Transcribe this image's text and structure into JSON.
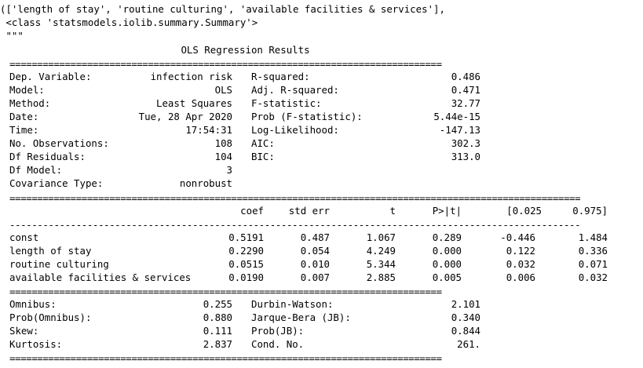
{
  "header": {
    "line1": "(['length of stay', 'routine culturing', 'available facilities & services'],",
    "line2": " <class 'statsmodels.iolib.summary.Summary'>",
    "line3": " \"\"\""
  },
  "summary": {
    "title": "OLS Regression Results",
    "sep_eq": "==============================================================================",
    "sep_eq_wide": "=======================================================================================================",
    "sep_dash_wide": "-------------------------------------------------------------------------------------------------------",
    "left": [
      {
        "label": "Dep. Variable:",
        "value": "infection risk"
      },
      {
        "label": "Model:",
        "value": "OLS"
      },
      {
        "label": "Method:",
        "value": "Least Squares"
      },
      {
        "label": "Date:",
        "value": "Tue, 28 Apr 2020"
      },
      {
        "label": "Time:",
        "value": "17:54:31"
      },
      {
        "label": "No. Observations:",
        "value": "108"
      },
      {
        "label": "Df Residuals:",
        "value": "104"
      },
      {
        "label": "Df Model:",
        "value": "3"
      },
      {
        "label": "Covariance Type:",
        "value": "nonrobust"
      }
    ],
    "right": [
      {
        "label": "R-squared:",
        "value": "0.486"
      },
      {
        "label": "Adj. R-squared:",
        "value": "0.471"
      },
      {
        "label": "F-statistic:",
        "value": "32.77"
      },
      {
        "label": "Prob (F-statistic):",
        "value": "5.44e-15"
      },
      {
        "label": "Log-Likelihood:",
        "value": "-147.13"
      },
      {
        "label": "AIC:",
        "value": "302.3"
      },
      {
        "label": "BIC:",
        "value": "313.0"
      }
    ],
    "coef_headers": [
      "coef",
      "std err",
      "t",
      "P>|t|",
      "[0.025",
      "0.975]"
    ],
    "coef_rows": [
      {
        "name": "const",
        "vals": [
          "0.5191",
          "0.487",
          "1.067",
          "0.289",
          "-0.446",
          "1.484"
        ]
      },
      {
        "name": "length of stay",
        "vals": [
          "0.2290",
          "0.054",
          "4.249",
          "0.000",
          "0.122",
          "0.336"
        ]
      },
      {
        "name": "routine culturing",
        "vals": [
          "0.0515",
          "0.010",
          "5.344",
          "0.000",
          "0.032",
          "0.071"
        ]
      },
      {
        "name": "available facilities & services",
        "vals": [
          "0.0190",
          "0.007",
          "2.885",
          "0.005",
          "0.006",
          "0.032"
        ]
      }
    ],
    "diag_left": [
      {
        "label": "Omnibus:",
        "value": "0.255"
      },
      {
        "label": "Prob(Omnibus):",
        "value": "0.880"
      },
      {
        "label": "Skew:",
        "value": "0.111"
      },
      {
        "label": "Kurtosis:",
        "value": "2.837"
      }
    ],
    "diag_right": [
      {
        "label": "Durbin-Watson:",
        "value": "2.101"
      },
      {
        "label": "Jarque-Bera (JB):",
        "value": "0.340"
      },
      {
        "label": "Prob(JB):",
        "value": "0.844"
      },
      {
        "label": "Cond. No.",
        "value": "261."
      }
    ]
  }
}
